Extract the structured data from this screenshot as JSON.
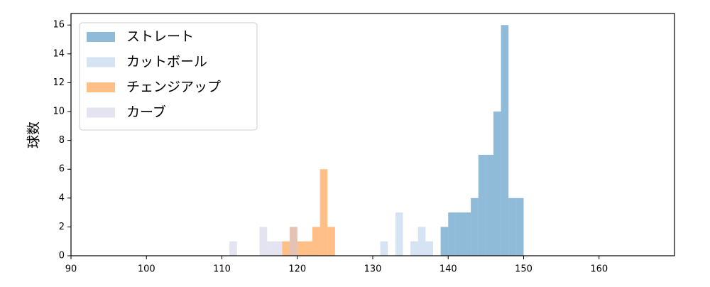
{
  "chart_data": {
    "type": "histogram",
    "y_label": "球数",
    "xlim": [
      90,
      170
    ],
    "ylim": [
      0,
      16.8
    ],
    "xticks": [
      90,
      100,
      110,
      120,
      130,
      140,
      150,
      160
    ],
    "yticks": [
      0,
      2,
      4,
      6,
      8,
      10,
      12,
      14,
      16
    ],
    "legend": "upper left",
    "opacity": 0.5,
    "series": [
      {
        "name": "ストレート",
        "color": "#1f77b4",
        "bins": [
          139,
          140,
          141,
          142,
          143,
          144,
          145,
          146,
          147,
          148,
          149,
          150
        ],
        "values": [
          2,
          3,
          3,
          3,
          4,
          7,
          7,
          10,
          16,
          4,
          4
        ]
      },
      {
        "name": "カットボール",
        "color": "#aec7e8",
        "bins": [
          131,
          132,
          133,
          134,
          135,
          136,
          137,
          138
        ],
        "values": [
          1,
          0,
          3,
          0,
          1,
          2,
          1
        ]
      },
      {
        "name": "チェンジアップ",
        "color": "#ff7f0e",
        "bins": [
          118,
          119,
          120,
          121,
          122,
          123,
          124,
          125
        ],
        "values": [
          1,
          2,
          1,
          1,
          2,
          6,
          2
        ]
      },
      {
        "name": "カーブ",
        "color": "#c7c7e3",
        "bins": [
          111,
          112,
          113,
          114,
          115,
          116,
          117,
          118,
          119,
          120
        ],
        "values": [
          1,
          0,
          0,
          0,
          2,
          1,
          1,
          0,
          2
        ]
      }
    ]
  }
}
